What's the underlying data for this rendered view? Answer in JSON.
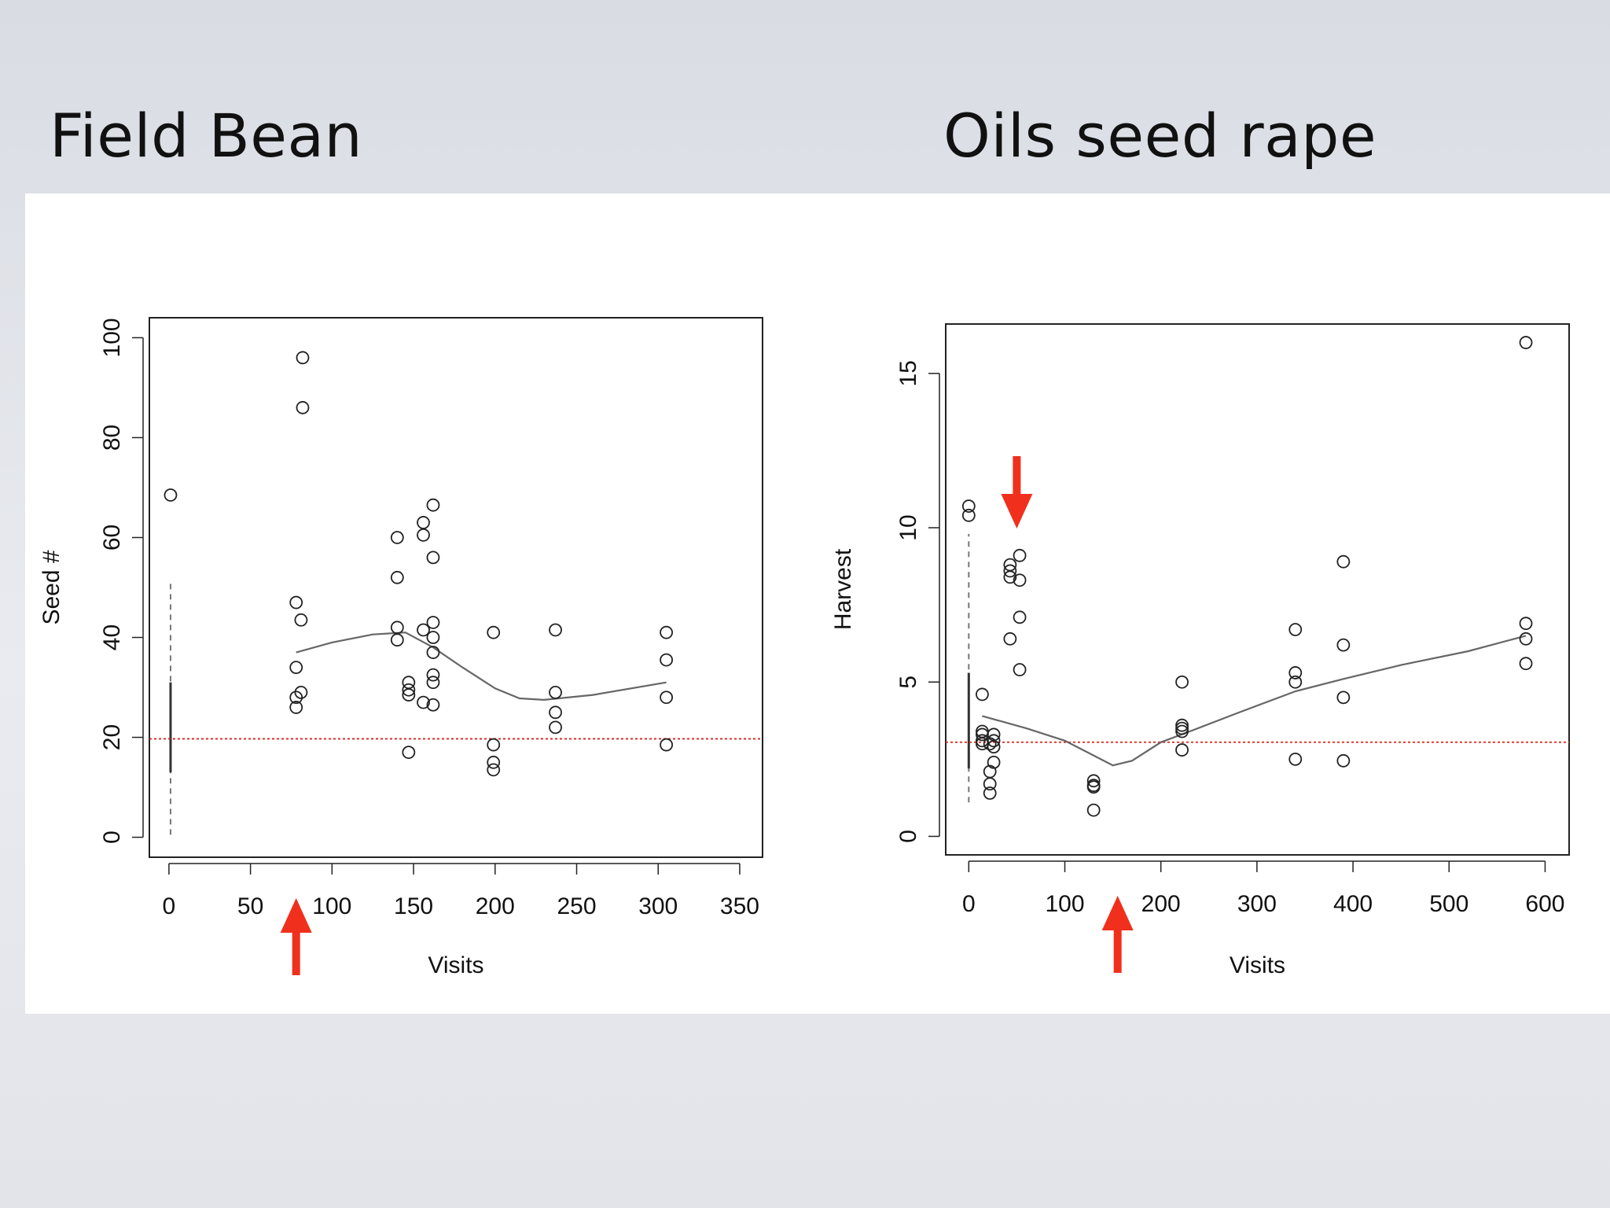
{
  "slide": {
    "title_left": "Field Bean",
    "title_right": "Oils seed rape"
  },
  "colors": {
    "background": "#e5e7ec",
    "panel": "#ffffff",
    "points": "#222222",
    "smooth_line": "#666666",
    "reference_line": "#d9241c",
    "arrow": "#f0301c"
  },
  "chart_data": [
    {
      "type": "scatter",
      "title": "",
      "xlabel": "Visits",
      "ylabel": "Seed #",
      "xlim": [
        -12,
        364
      ],
      "ylim": [
        -4,
        104
      ],
      "xticks": [
        0,
        50,
        100,
        150,
        200,
        250,
        300,
        350
      ],
      "yticks": [
        0,
        20,
        40,
        60,
        80,
        100
      ],
      "grid": false,
      "legend": "none",
      "reference_line_y": 19.7,
      "control_range": {
        "x": 1,
        "whisker": [
          0.5,
          51
        ],
        "box": [
          13,
          31
        ]
      },
      "points": [
        [
          1,
          68.5
        ],
        [
          78,
          47
        ],
        [
          78,
          34
        ],
        [
          78,
          28
        ],
        [
          78,
          26
        ],
        [
          81,
          43.5
        ],
        [
          81,
          29
        ],
        [
          82,
          96
        ],
        [
          82,
          86
        ],
        [
          140,
          60
        ],
        [
          140,
          52
        ],
        [
          140,
          42
        ],
        [
          140,
          39.5
        ],
        [
          147,
          31
        ],
        [
          147,
          29.5
        ],
        [
          147,
          28.5
        ],
        [
          147,
          17
        ],
        [
          156,
          63
        ],
        [
          156,
          60.5
        ],
        [
          156,
          41.5
        ],
        [
          156,
          27
        ],
        [
          162,
          66.5
        ],
        [
          162,
          56
        ],
        [
          162,
          43
        ],
        [
          162,
          40
        ],
        [
          162,
          37
        ],
        [
          162,
          32.5
        ],
        [
          162,
          31
        ],
        [
          162,
          26.5
        ],
        [
          199,
          41
        ],
        [
          199,
          18.5
        ],
        [
          199,
          15
        ],
        [
          199,
          13.5
        ],
        [
          237,
          41.5
        ],
        [
          237,
          29
        ],
        [
          237,
          25
        ],
        [
          237,
          22
        ],
        [
          305,
          41
        ],
        [
          305,
          35.5
        ],
        [
          305,
          28
        ],
        [
          305,
          18.5
        ]
      ],
      "smooth_line": [
        [
          78,
          37
        ],
        [
          100,
          39
        ],
        [
          125,
          40.6
        ],
        [
          145,
          41
        ],
        [
          162,
          38
        ],
        [
          180,
          34
        ],
        [
          200,
          29.8
        ],
        [
          215,
          27.8
        ],
        [
          230,
          27.5
        ],
        [
          260,
          28.5
        ],
        [
          305,
          31
        ]
      ],
      "annotation_arrows": [
        {
          "x": 78,
          "direction": "up"
        }
      ]
    },
    {
      "type": "scatter",
      "title": "",
      "xlabel": "Visits",
      "ylabel": "Harvest",
      "xlim": [
        -24,
        625
      ],
      "ylim": [
        -0.6,
        16.6
      ],
      "xticks": [
        0,
        100,
        200,
        300,
        400,
        500,
        600
      ],
      "yticks": [
        0,
        5,
        10,
        15
      ],
      "grid": false,
      "legend": "none",
      "reference_line_y": 3.05,
      "control_range": {
        "x": 0,
        "whisker": [
          1.1,
          9.8
        ],
        "box": [
          2.2,
          5.3
        ]
      },
      "points": [
        [
          0,
          10.7
        ],
        [
          0,
          10.4
        ],
        [
          14,
          4.6
        ],
        [
          14,
          3.4
        ],
        [
          14,
          3.3
        ],
        [
          14,
          3.1
        ],
        [
          14,
          3.0
        ],
        [
          22,
          3.0
        ],
        [
          22,
          2.1
        ],
        [
          22,
          1.7
        ],
        [
          22,
          1.4
        ],
        [
          26,
          3.3
        ],
        [
          26,
          3.1
        ],
        [
          26,
          2.9
        ],
        [
          26,
          2.4
        ],
        [
          43,
          8.8
        ],
        [
          43,
          8.6
        ],
        [
          43,
          8.4
        ],
        [
          43,
          6.4
        ],
        [
          53,
          9.1
        ],
        [
          53,
          8.3
        ],
        [
          53,
          7.1
        ],
        [
          53,
          5.4
        ],
        [
          130,
          1.8
        ],
        [
          130,
          1.65
        ],
        [
          130,
          1.6
        ],
        [
          130,
          0.85
        ],
        [
          222,
          5.0
        ],
        [
          222,
          3.6
        ],
        [
          222,
          3.5
        ],
        [
          222,
          3.4
        ],
        [
          222,
          2.8
        ],
        [
          340,
          6.7
        ],
        [
          340,
          5.3
        ],
        [
          340,
          5.0
        ],
        [
          340,
          2.5
        ],
        [
          390,
          8.9
        ],
        [
          390,
          6.2
        ],
        [
          390,
          4.5
        ],
        [
          390,
          2.45
        ],
        [
          580,
          16.0
        ],
        [
          580,
          6.9
        ],
        [
          580,
          6.4
        ],
        [
          580,
          5.6
        ]
      ],
      "smooth_line": [
        [
          14,
          3.9
        ],
        [
          60,
          3.5
        ],
        [
          100,
          3.1
        ],
        [
          125,
          2.7
        ],
        [
          150,
          2.3
        ],
        [
          170,
          2.45
        ],
        [
          200,
          3.05
        ],
        [
          230,
          3.4
        ],
        [
          280,
          4.0
        ],
        [
          340,
          4.7
        ],
        [
          390,
          5.1
        ],
        [
          450,
          5.55
        ],
        [
          520,
          6.0
        ],
        [
          580,
          6.5
        ]
      ],
      "annotation_arrows": [
        {
          "x": 155,
          "direction": "up"
        },
        {
          "x": 50,
          "direction": "down"
        }
      ]
    }
  ]
}
